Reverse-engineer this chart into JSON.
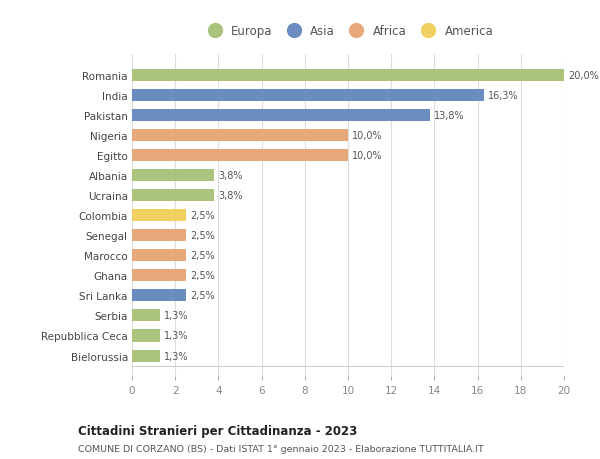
{
  "countries": [
    "Romania",
    "India",
    "Pakistan",
    "Nigeria",
    "Egitto",
    "Albania",
    "Ucraina",
    "Colombia",
    "Senegal",
    "Marocco",
    "Ghana",
    "Sri Lanka",
    "Serbia",
    "Repubblica Ceca",
    "Bielorussia"
  ],
  "values": [
    20.0,
    16.3,
    13.8,
    10.0,
    10.0,
    3.8,
    3.8,
    2.5,
    2.5,
    2.5,
    2.5,
    2.5,
    1.3,
    1.3,
    1.3
  ],
  "labels": [
    "20,0%",
    "16,3%",
    "13,8%",
    "10,0%",
    "10,0%",
    "3,8%",
    "3,8%",
    "2,5%",
    "2,5%",
    "2,5%",
    "2,5%",
    "2,5%",
    "1,3%",
    "1,3%",
    "1,3%"
  ],
  "colors": [
    "#aac47e",
    "#6b8cbf",
    "#6b8cbf",
    "#e8a97a",
    "#e8a97a",
    "#aac47e",
    "#aac47e",
    "#f0d060",
    "#e8a97a",
    "#e8a97a",
    "#e8a97a",
    "#6b8cbf",
    "#aac47e",
    "#aac47e",
    "#aac47e"
  ],
  "continents": [
    "Europa",
    "Asia",
    "Africa",
    "America"
  ],
  "continent_colors": [
    "#aac47e",
    "#6b8cbf",
    "#e8a97a",
    "#f0d060"
  ],
  "title": "Cittadini Stranieri per Cittadinanza - 2023",
  "subtitle": "COMUNE DI CORZANO (BS) - Dati ISTAT 1° gennaio 2023 - Elaborazione TUTTITALIA.IT",
  "xlim": [
    0,
    20
  ],
  "xticks": [
    0,
    2,
    4,
    6,
    8,
    10,
    12,
    14,
    16,
    18,
    20
  ],
  "bg_color": "#ffffff",
  "grid_color": "#dddddd",
  "bar_height": 0.6
}
